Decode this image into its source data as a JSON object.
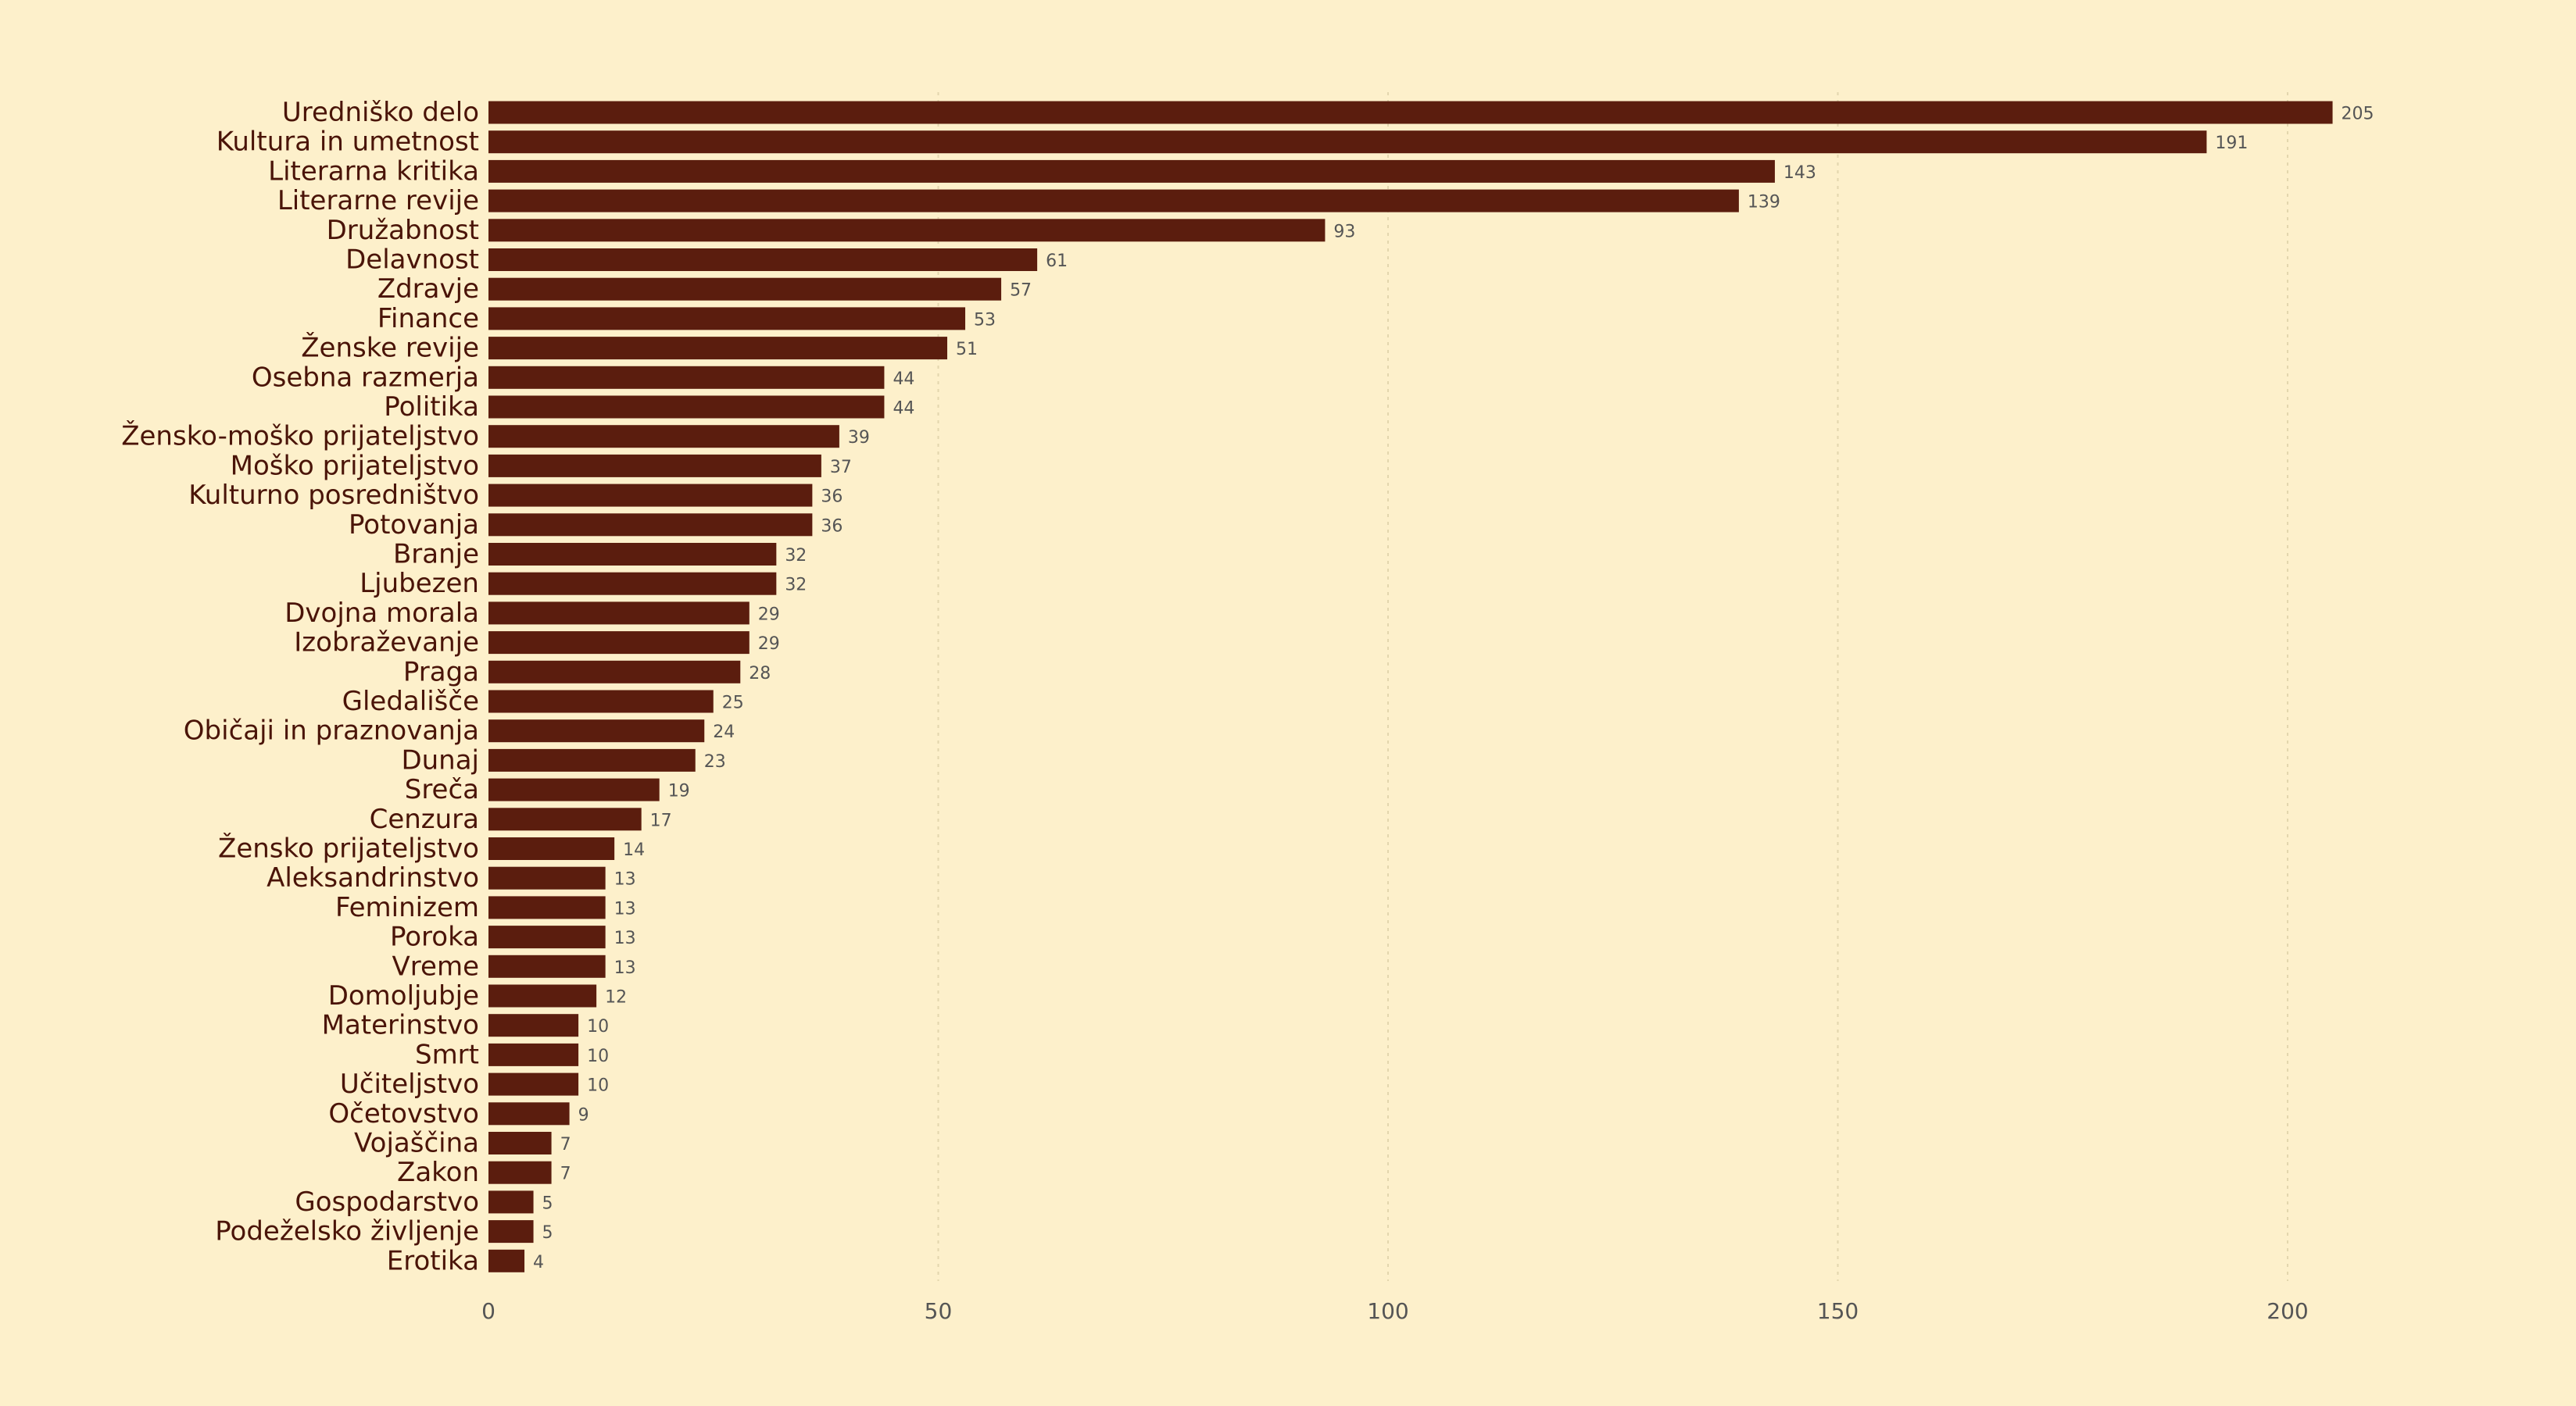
{
  "colors": {
    "background": "#fdf0cb",
    "bar": "#5b1d0e",
    "category_text": "#4a1408",
    "value_text": "#555555"
  },
  "chart_data": {
    "type": "bar",
    "orientation": "horizontal",
    "categories": [
      "Uredniško delo",
      "Kultura in umetnost",
      "Literarna kritika",
      "Literarne revije",
      "Družabnost",
      "Delavnost",
      "Zdravje",
      "Finance",
      "Ženske revije",
      "Osebna razmerja",
      "Politika",
      "Žensko-moško prijateljstvo",
      "Moško prijateljstvo",
      "Kulturno posredništvo",
      "Potovanja",
      "Branje",
      "Ljubezen",
      "Dvojna morala",
      "Izobraževanje",
      "Praga",
      "Gledališče",
      "Običaji in praznovanja",
      "Dunaj",
      "Sreča",
      "Cenzura",
      "Žensko prijateljstvo",
      "Aleksandrinstvo",
      "Feminizem",
      "Poroka",
      "Vreme",
      "Domoljubje",
      "Materinstvo",
      "Smrt",
      "Učiteljstvo",
      "Očetovstvo",
      "Vojaščina",
      "Zakon",
      "Gospodarstvo",
      "Podeželsko življenje",
      "Erotika"
    ],
    "values": [
      205,
      191,
      143,
      139,
      93,
      61,
      57,
      53,
      51,
      44,
      44,
      39,
      37,
      36,
      36,
      32,
      32,
      29,
      29,
      28,
      25,
      24,
      23,
      19,
      17,
      14,
      13,
      13,
      13,
      13,
      12,
      10,
      10,
      10,
      9,
      7,
      7,
      5,
      5,
      4
    ],
    "value_labels": [
      "205",
      "191",
      "143",
      "139",
      "93",
      "61",
      "57",
      "53",
      "51",
      "44",
      "44",
      "39",
      "37",
      "36",
      "36",
      "32",
      "32",
      "29",
      "29",
      "28",
      "25",
      "24",
      "23",
      "19",
      "17",
      "14",
      "13",
      "13",
      "13",
      "13",
      "12",
      "10",
      "10",
      "10",
      "9",
      "7",
      "7",
      "5",
      "5",
      "4"
    ],
    "xticks": [
      0,
      50,
      100,
      150,
      200
    ],
    "xtick_labels": [
      "0",
      "50",
      "100",
      "150",
      "200"
    ],
    "xlim": [
      0,
      225
    ],
    "grid": "vertical dotted",
    "legend": "none"
  }
}
